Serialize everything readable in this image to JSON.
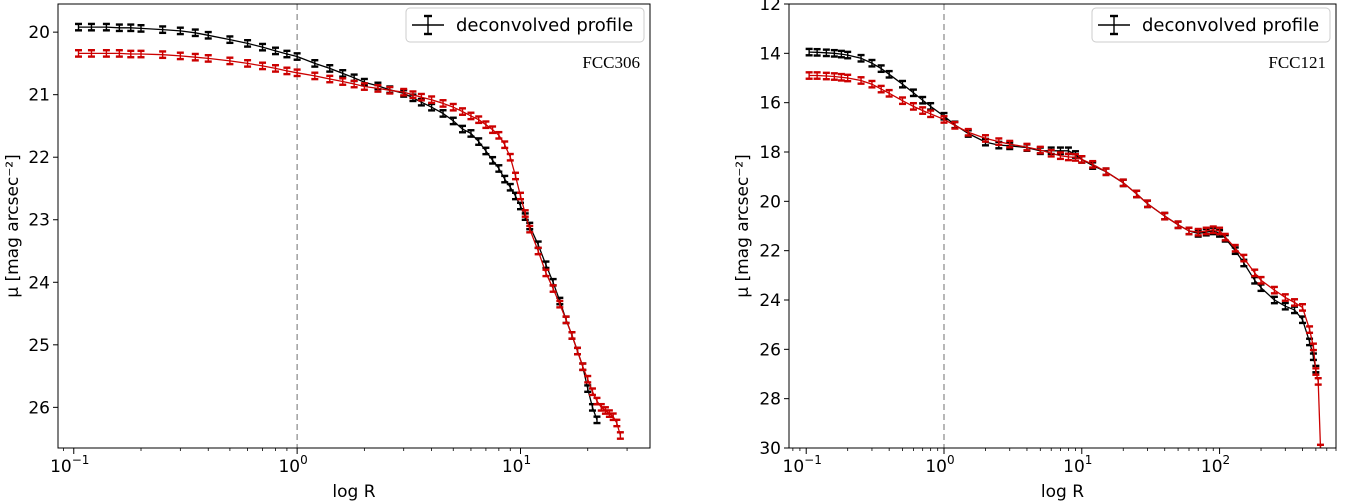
{
  "chart_data": [
    {
      "type": "line",
      "annotation": "FCC306",
      "xlabel": "log R",
      "ylabel": "μ [mag arcsec⁻²]",
      "xscale": "log",
      "xlim": [
        0.085,
        38
      ],
      "ylim": [
        26.65,
        19.55
      ],
      "x_ticks": [
        {
          "v": 0.1,
          "base": "10",
          "exp": "−1"
        },
        {
          "v": 1,
          "base": "10",
          "exp": "0"
        },
        {
          "v": 10,
          "base": "10",
          "exp": "1"
        }
      ],
      "y_ticks": [
        "20",
        "21",
        "22",
        "23",
        "24",
        "25",
        "26"
      ],
      "vline_x": 1,
      "legend": {
        "label": "deconvolved profile",
        "position": "top-right"
      },
      "series": [
        {
          "color": "#000000",
          "x": [
            0.105,
            0.12,
            0.14,
            0.16,
            0.18,
            0.2,
            0.25,
            0.3,
            0.35,
            0.4,
            0.5,
            0.6,
            0.7,
            0.8,
            0.9,
            1.0,
            1.2,
            1.4,
            1.6,
            1.8,
            2.0,
            2.3,
            2.6,
            3.0,
            3.3,
            3.6,
            4.0,
            4.5,
            5.0,
            5.5,
            6.0,
            6.5,
            7.0,
            7.5,
            8.0,
            8.5,
            9.0,
            9.5,
            10.0,
            10.5,
            11.0,
            12.0,
            13.0,
            14.0,
            15.0,
            16.0,
            17.0,
            18.0,
            19.0,
            20.0,
            21.0,
            22.0
          ],
          "y": [
            19.92,
            19.92,
            19.92,
            19.93,
            19.93,
            19.94,
            19.96,
            19.98,
            20.01,
            20.05,
            20.12,
            20.18,
            20.24,
            20.3,
            20.35,
            20.39,
            20.5,
            20.58,
            20.66,
            20.73,
            20.8,
            20.86,
            20.92,
            20.98,
            21.05,
            21.12,
            21.2,
            21.3,
            21.42,
            21.55,
            21.62,
            21.75,
            21.9,
            22.05,
            22.18,
            22.35,
            22.48,
            22.62,
            22.78,
            22.95,
            23.1,
            23.4,
            23.72,
            24.0,
            24.3,
            24.6,
            24.85,
            25.1,
            25.35,
            25.7,
            26.0,
            26.2
          ]
        },
        {
          "color": "#cc0000",
          "x": [
            0.105,
            0.12,
            0.14,
            0.16,
            0.18,
            0.2,
            0.25,
            0.3,
            0.35,
            0.4,
            0.5,
            0.6,
            0.7,
            0.8,
            0.9,
            1.0,
            1.2,
            1.4,
            1.6,
            1.8,
            2.0,
            2.3,
            2.6,
            3.0,
            3.3,
            3.6,
            4.0,
            4.5,
            5.0,
            5.5,
            6.0,
            6.5,
            7.0,
            7.5,
            8.0,
            8.5,
            9.0,
            9.5,
            10.0,
            10.5,
            11.0,
            12.0,
            13.0,
            14.0,
            15.0,
            16.0,
            17.0,
            18.0,
            19.0,
            20.0,
            21.0,
            22.0,
            23.0,
            24.0,
            25.0,
            26.0,
            27.0,
            28.0
          ],
          "y": [
            20.34,
            20.34,
            20.34,
            20.34,
            20.35,
            20.35,
            20.36,
            20.38,
            20.4,
            20.42,
            20.46,
            20.5,
            20.54,
            20.58,
            20.62,
            20.65,
            20.7,
            20.75,
            20.79,
            20.83,
            20.87,
            20.9,
            20.93,
            20.96,
            21.0,
            21.04,
            21.08,
            21.14,
            21.2,
            21.27,
            21.34,
            21.4,
            21.48,
            21.56,
            21.65,
            21.8,
            22.0,
            22.3,
            22.62,
            22.9,
            23.15,
            23.5,
            23.85,
            24.1,
            24.35,
            24.6,
            24.85,
            25.1,
            25.35,
            25.55,
            25.75,
            25.9,
            26.0,
            26.05,
            26.1,
            26.15,
            26.25,
            26.45
          ]
        }
      ]
    },
    {
      "type": "line",
      "annotation": "FCC121",
      "xlabel": "log R",
      "ylabel": "μ [mag arcsec⁻²]",
      "xscale": "log",
      "xlim": [
        0.075,
        700
      ],
      "ylim": [
        30,
        12
      ],
      "x_ticks": [
        {
          "v": 0.1,
          "base": "10",
          "exp": "−1"
        },
        {
          "v": 1,
          "base": "10",
          "exp": "0"
        },
        {
          "v": 10,
          "base": "10",
          "exp": "1"
        },
        {
          "v": 100,
          "base": "10",
          "exp": "2"
        }
      ],
      "y_ticks": [
        "12",
        "14",
        "16",
        "18",
        "20",
        "22",
        "24",
        "26",
        "28",
        "30"
      ],
      "vline_x": 1,
      "legend": {
        "label": "deconvolved profile",
        "position": "top-right"
      },
      "series": [
        {
          "color": "#000000",
          "x": [
            0.105,
            0.12,
            0.14,
            0.16,
            0.18,
            0.2,
            0.25,
            0.3,
            0.35,
            0.4,
            0.5,
            0.6,
            0.7,
            0.8,
            1.0,
            1.2,
            1.5,
            2.0,
            2.5,
            3.0,
            4.0,
            5.0,
            6.0,
            7.0,
            8.0,
            9.0,
            10,
            12,
            15,
            20,
            25,
            30,
            40,
            50,
            60,
            70,
            80,
            90,
            100,
            110,
            130,
            150,
            180,
            200,
            250,
            300,
            350,
            400,
            450,
            480,
            500
          ],
          "y": [
            13.95,
            13.96,
            13.98,
            14.0,
            14.03,
            14.07,
            14.2,
            14.4,
            14.62,
            14.85,
            15.25,
            15.6,
            15.9,
            16.15,
            16.55,
            16.9,
            17.25,
            17.6,
            17.72,
            17.75,
            17.82,
            17.95,
            17.95,
            17.95,
            17.95,
            18.1,
            18.3,
            18.55,
            18.8,
            19.25,
            19.7,
            20.1,
            20.6,
            20.95,
            21.2,
            21.3,
            21.25,
            21.2,
            21.3,
            21.5,
            22.0,
            22.5,
            23.2,
            23.5,
            24.0,
            24.25,
            24.4,
            24.8,
            25.7,
            26.3,
            26.8
          ]
        },
        {
          "color": "#cc0000",
          "x": [
            0.105,
            0.12,
            0.14,
            0.16,
            0.18,
            0.2,
            0.25,
            0.3,
            0.35,
            0.4,
            0.5,
            0.6,
            0.7,
            0.8,
            1.0,
            1.2,
            1.5,
            2.0,
            2.5,
            3.0,
            4.0,
            5.0,
            6.0,
            7.0,
            8.0,
            9.0,
            10,
            12,
            15,
            20,
            25,
            30,
            40,
            50,
            60,
            70,
            80,
            90,
            100,
            110,
            130,
            150,
            180,
            200,
            250,
            300,
            350,
            400,
            450,
            480,
            500,
            520,
            540
          ],
          "y": [
            14.9,
            14.9,
            14.92,
            14.94,
            14.97,
            15.0,
            15.1,
            15.25,
            15.45,
            15.62,
            15.92,
            16.15,
            16.32,
            16.45,
            16.68,
            16.92,
            17.2,
            17.45,
            17.58,
            17.68,
            17.8,
            17.92,
            18.05,
            18.15,
            18.2,
            18.22,
            18.3,
            18.5,
            18.8,
            19.25,
            19.7,
            20.1,
            20.6,
            20.95,
            21.2,
            21.25,
            21.2,
            21.15,
            21.2,
            21.45,
            21.9,
            22.3,
            22.9,
            23.2,
            23.6,
            23.9,
            24.1,
            24.3,
            25.2,
            25.9,
            26.9,
            27.3,
            30.0
          ]
        }
      ]
    }
  ]
}
